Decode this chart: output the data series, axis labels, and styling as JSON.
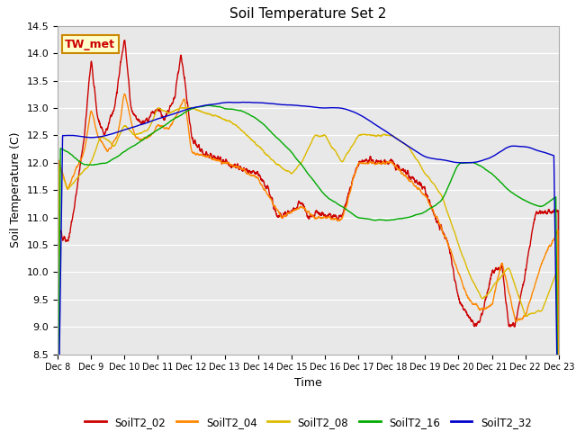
{
  "title": "Soil Temperature Set 2",
  "xlabel": "Time",
  "ylabel": "Soil Temperature (C)",
  "ylim": [
    8.5,
    14.5
  ],
  "series_names": [
    "SoilT2_02",
    "SoilT2_04",
    "SoilT2_08",
    "SoilT2_16",
    "SoilT2_32"
  ],
  "series_colors": [
    "#cc0000",
    "#ff8800",
    "#ddbb00",
    "#00aa00",
    "#0000cc"
  ],
  "xtick_labels": [
    "Dec 8",
    "Dec 9",
    "Dec 10",
    "Dec 11",
    "Dec 12",
    "Dec 13",
    "Dec 14",
    "Dec 15",
    "Dec 16",
    "Dec 17",
    "Dec 18",
    "Dec 19",
    "Dec 20",
    "Dec 21",
    "Dec 22",
    "Dec 23"
  ],
  "background_color": "#e8e8e8",
  "annotation_text": "TW_met",
  "annotation_box_color": "#ffffcc",
  "annotation_box_edge": "#cc8800",
  "yticks": [
    8.5,
    9.0,
    9.5,
    10.0,
    10.5,
    11.0,
    11.5,
    12.0,
    12.5,
    13.0,
    13.5,
    14.0,
    14.5
  ]
}
